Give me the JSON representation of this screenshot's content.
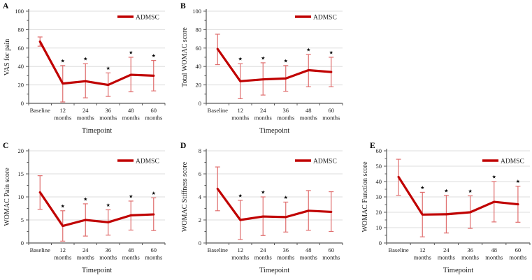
{
  "figure": {
    "categories": [
      "Baseline",
      "12 months",
      "24 months",
      "36 months",
      "48 months",
      "60 months"
    ],
    "x_axis_label": "Timepoint",
    "legend_label": "ADMSC",
    "significance_marker": "★",
    "colors": {
      "line": "#c00000",
      "error_bar": "#e06e6e",
      "gridline": "#dedede",
      "axis": "#595959",
      "text": "#1a1a1a",
      "marker": "#000000"
    }
  },
  "chart_data": [
    {
      "panel": "A",
      "type": "line",
      "title": "",
      "ylabel": "VAS for pain",
      "xlabel": "Timepoint",
      "ylim": [
        0,
        100
      ],
      "ytick_step": 20,
      "yminor_step": 10,
      "grid": true,
      "legend_position": "top-right",
      "categories": [
        "Baseline",
        "12 months",
        "24 months",
        "36 months",
        "48 months",
        "60 months"
      ],
      "series": [
        {
          "name": "ADMSC",
          "values": [
            67,
            21.5,
            24,
            20,
            31,
            30
          ],
          "err_lo": [
            62,
            1.5,
            6,
            7.5,
            12.5,
            13.5
          ],
          "err_hi": [
            72,
            41,
            43,
            33,
            50,
            46.5
          ]
        }
      ],
      "significant": [
        false,
        true,
        true,
        true,
        true,
        true
      ]
    },
    {
      "panel": "B",
      "type": "line",
      "title": "",
      "ylabel": "Total WOMAC score",
      "xlabel": "Timepoint",
      "ylim": [
        0,
        100
      ],
      "ytick_step": 20,
      "yminor_step": 10,
      "grid": true,
      "legend_position": "top-right",
      "categories": [
        "Baseline",
        "12 months",
        "24 months",
        "36 months",
        "48 months",
        "60 months"
      ],
      "series": [
        {
          "name": "ADMSC",
          "values": [
            59,
            24,
            26,
            27,
            36,
            34
          ],
          "err_lo": [
            42,
            5,
            9,
            13,
            18,
            18
          ],
          "err_hi": [
            75,
            43,
            44,
            41,
            53,
            50
          ]
        }
      ],
      "significant": [
        false,
        true,
        true,
        true,
        true,
        true
      ]
    },
    {
      "panel": "C",
      "type": "line",
      "title": "",
      "ylabel": "WOMAC Pain score",
      "xlabel": "Timepoint",
      "ylim": [
        0,
        20
      ],
      "ytick_step": 5,
      "yminor_step": 2.5,
      "grid": true,
      "legend_position": "top-right",
      "categories": [
        "Baseline",
        "12 months",
        "24 months",
        "36 months",
        "48 months",
        "60 months"
      ],
      "series": [
        {
          "name": "ADMSC",
          "values": [
            11,
            3.7,
            5,
            4.5,
            6,
            6.2
          ],
          "err_lo": [
            7.3,
            0.4,
            1.5,
            1.7,
            2.8,
            2.7
          ],
          "err_hi": [
            14.6,
            7,
            8.5,
            7.2,
            9.1,
            9.8
          ]
        }
      ],
      "significant": [
        false,
        true,
        true,
        true,
        true,
        true
      ]
    },
    {
      "panel": "D",
      "type": "line",
      "title": "",
      "ylabel": "WOMAC Stiffness score",
      "xlabel": "Timepoint",
      "ylim": [
        0,
        8
      ],
      "ytick_step": 2,
      "yminor_step": 1,
      "grid": true,
      "legend_position": "top-right",
      "categories": [
        "Baseline",
        "12 months",
        "24 months",
        "36 months",
        "48 months",
        "60 months"
      ],
      "series": [
        {
          "name": "ADMSC",
          "values": [
            4.7,
            2,
            2.3,
            2.25,
            2.8,
            2.7
          ],
          "err_lo": [
            2.8,
            0.3,
            0.65,
            0.95,
            1.1,
            1.0
          ],
          "err_hi": [
            6.6,
            3.7,
            4.0,
            3.55,
            4.55,
            4.45
          ]
        }
      ],
      "significant": [
        false,
        true,
        true,
        true,
        false,
        false
      ]
    },
    {
      "panel": "E",
      "type": "line",
      "title": "",
      "ylabel": "WOMAC Function score",
      "xlabel": "Timepoint",
      "ylim": [
        0,
        60
      ],
      "ytick_step": 10,
      "yminor_step": 5,
      "grid": true,
      "legend_position": "top-right",
      "categories": [
        "Baseline",
        "12 months",
        "24 months",
        "36 months",
        "48 months",
        "60 months"
      ],
      "series": [
        {
          "name": "ADMSC",
          "values": [
            43,
            18.5,
            18.7,
            20,
            26.8,
            25.2
          ],
          "err_lo": [
            31,
            4,
            6.5,
            9.5,
            13.7,
            13.5
          ],
          "err_hi": [
            54.5,
            33,
            31,
            30.7,
            40,
            37
          ]
        }
      ],
      "significant": [
        false,
        true,
        true,
        true,
        true,
        true
      ]
    }
  ]
}
